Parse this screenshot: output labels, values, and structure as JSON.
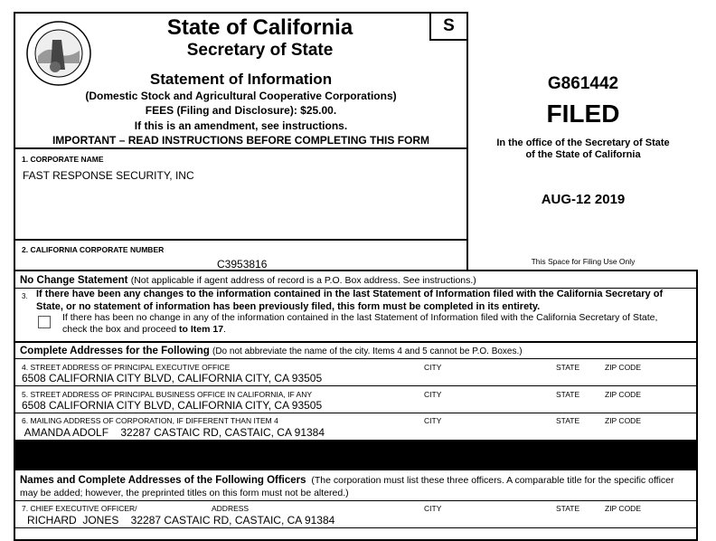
{
  "header": {
    "title": "State of California",
    "subtitle": "Secretary of State",
    "form_title": "Statement of Information",
    "form_subtitle": "(Domestic Stock and Agricultural Cooperative Corporations)",
    "fees": "FEES (Filing and Disclosure): $25.00.",
    "amendment": "If this is an amendment, see instructions.",
    "important": "IMPORTANT – READ INSTRUCTIONS BEFORE COMPLETING THIS FORM",
    "form_code": "S",
    "seal_text": "THE GREAT SEAL OF THE STATE OF CALIFORNIA"
  },
  "filing": {
    "number": "G861442",
    "status": "FILED",
    "office_line1": "In the office of the Secretary of State",
    "office_line2": "of the State of California",
    "date": "AUG-12 2019",
    "space_note": "This Space for Filing Use Only"
  },
  "item1": {
    "label": "1.   CORPORATE NAME",
    "value": "FAST RESPONSE SECURITY, INC"
  },
  "item2": {
    "label": "2.  CALIFORNIA CORPORATE NUMBER",
    "value": "C3953816"
  },
  "no_change": {
    "heading": "No Change Statement",
    "note": "(Not applicable if agent address of record is a P.O. Box address.  See instructions.)",
    "item_num": "3.",
    "bold_text": "If there have been any changes to the information contained in the last Statement of Information filed with the California Secretary of State, or no statement of information has been previously filed, this form must be completed in its entirety.",
    "checkbox_text": "If there has been no change in any of the information contained in the last Statement of Information filed with the California Secretary of State, check the box and proceed ",
    "checkbox_bold": "to Item 17",
    "checkbox_end": ".",
    "checked": false
  },
  "addresses": {
    "heading": "Complete Addresses for the Following",
    "note": "(Do not abbreviate the name of the city.  Items 4 and 5 cannot be P.O. Boxes.)",
    "city": "CITY",
    "state": "STATE",
    "zip": "ZIP CODE",
    "rows": [
      {
        "label": "4.   STREET ADDRESS OF PRINCIPAL EXECUTIVE OFFICE",
        "value": "6508 CALIFORNIA CITY BLVD, CALIFORNIA CITY, CA 93505"
      },
      {
        "label": "5.   STREET ADDRESS OF PRINCIPAL BUSINESS OFFICE IN CALIFORNIA, IF ANY",
        "value": "6508 CALIFORNIA CITY BLVD, CALIFORNIA CITY, CA 93505"
      },
      {
        "label": "6.   MAILING ADDRESS OF CORPORATION, IF DIFFERENT THAN ITEM 4",
        "value": " AMANDA ADOLF    32287 CASTAIC RD, CASTAIC, CA 91384"
      }
    ]
  },
  "officers": {
    "heading": "Names and Complete Addresses of the Following Officers",
    "note": "(The corporation must list these three officers.  A comparable title for the specific officer may be added; however, the preprinted titles on this form must not be altered.)",
    "row7": {
      "label": "7.   CHIEF EXECUTIVE OFFICER/",
      "address": "ADDRESS",
      "city": "CITY",
      "state": "STATE",
      "zip": "ZIP CODE",
      "value": "RICHARD  JONES    32287 CASTAIC RD, CASTAIC, CA 91384"
    }
  }
}
